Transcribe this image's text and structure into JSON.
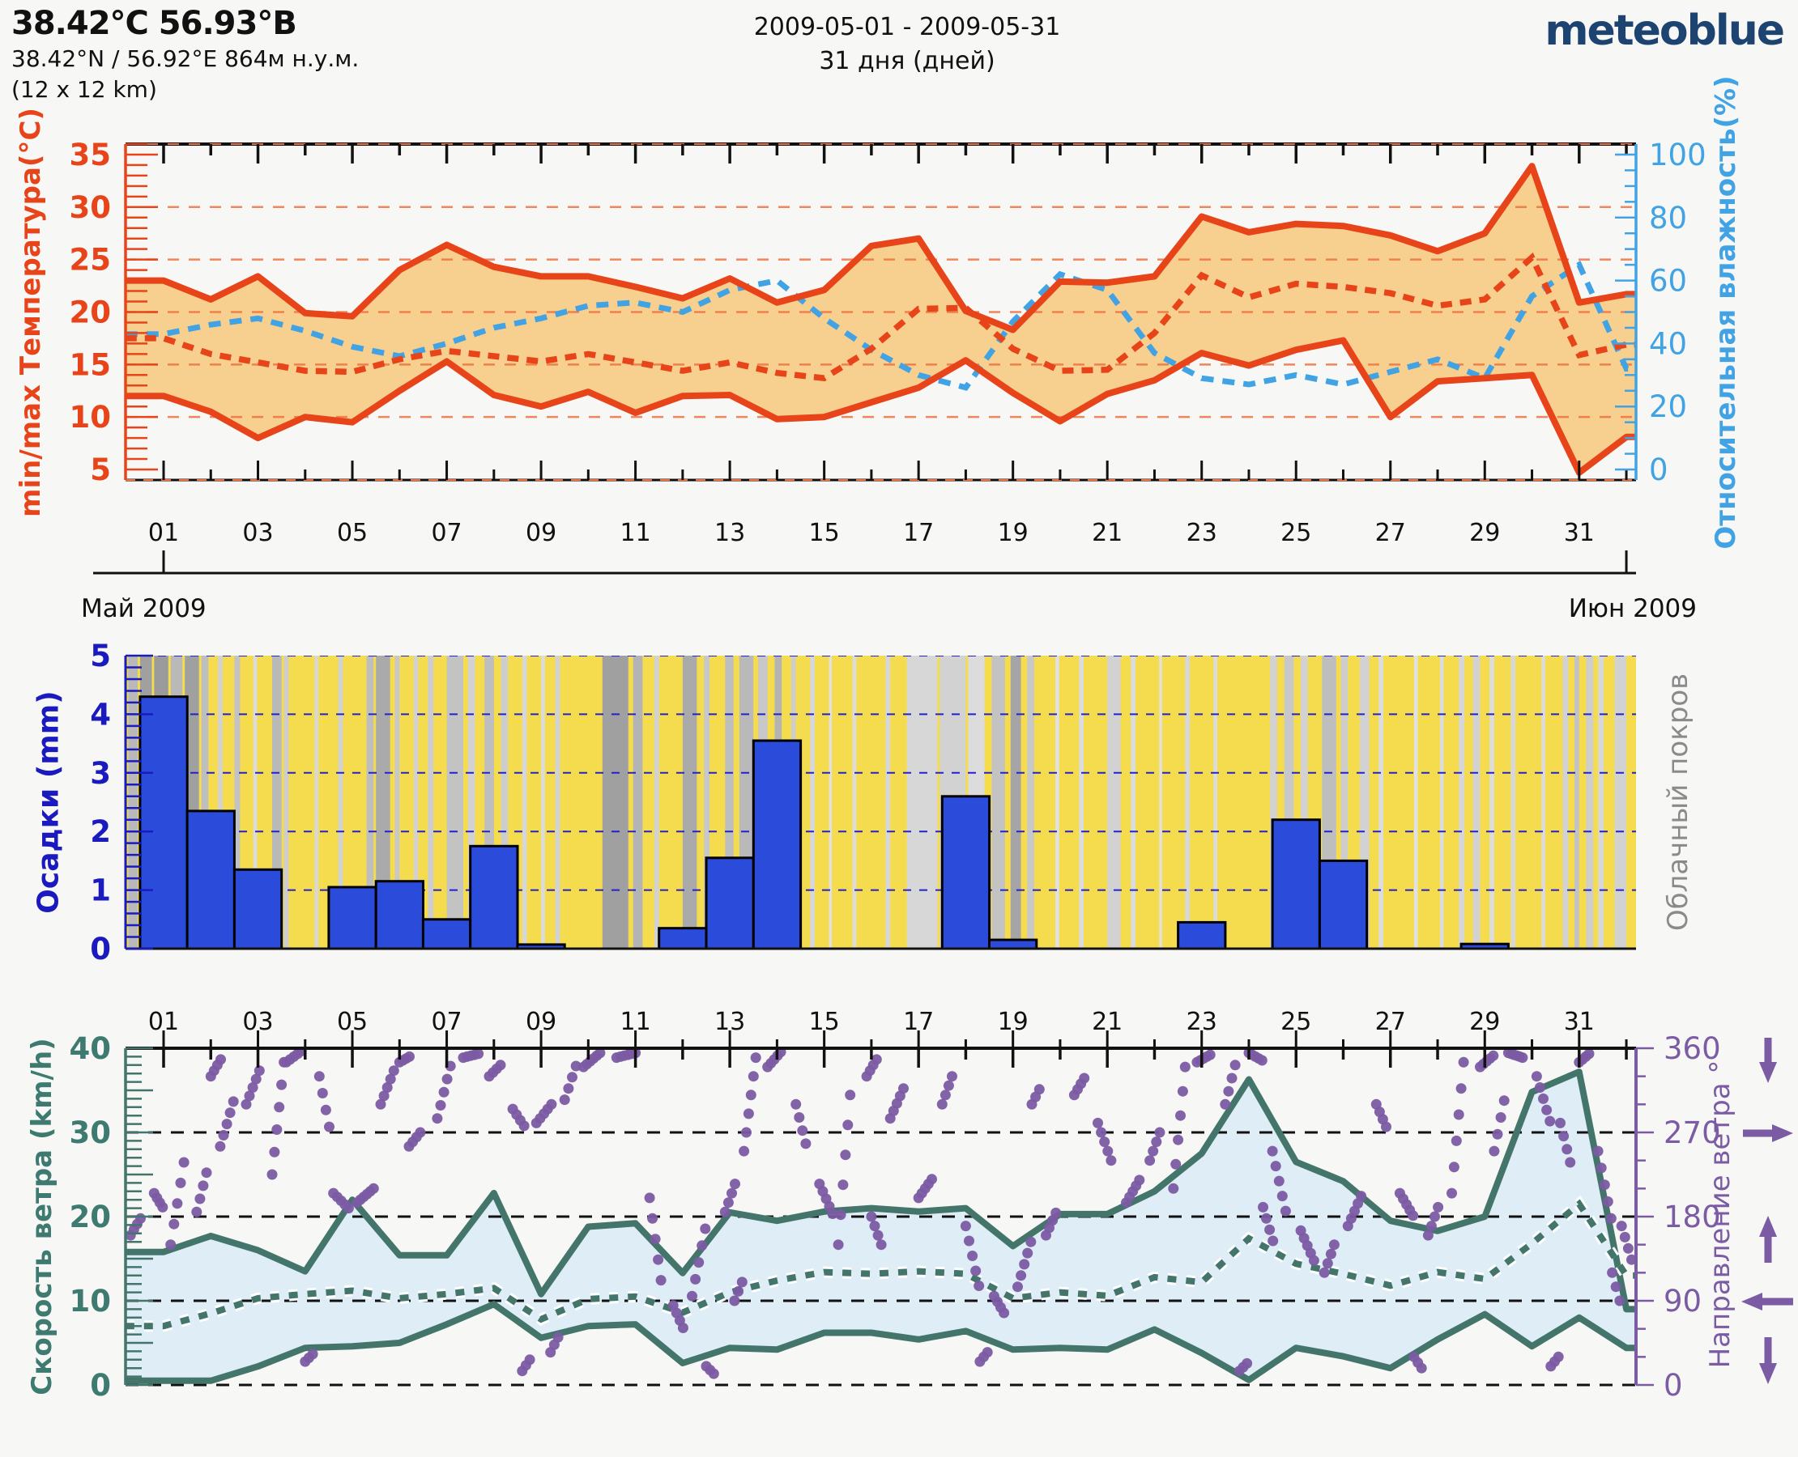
{
  "header": {
    "title": "38.42°C 56.93°B",
    "coords": "38.42°N / 56.92°E   864м н.у.м.",
    "resolution": "(12 x 12 km)",
    "date_range": "2009-05-01 - 2009-05-31",
    "duration": "31 дня (дней)",
    "logo_text": "meteoblue"
  },
  "colors": {
    "page_bg": "#f7f7f6",
    "temp_line": "#e8441a",
    "temp_band": "#f7cf8e",
    "temp_grid": "#ef7340",
    "humidity_line": "#41a3e3",
    "precip_bar": "#2b4bdb",
    "precip_axis": "#1a1abe",
    "cloud_bg": "#f5dc4e",
    "cloud_label": "#8a8a8a",
    "wind_line": "#44756b",
    "wind_band": "#deedf6",
    "wind_dir_dot": "#7b5ba3",
    "frame_black": "#111111",
    "logo_color": "#1d4370"
  },
  "chart_data": [
    {
      "id": "temperature-humidity",
      "type": "area",
      "ylabel_left": "min/max Температура(°C)",
      "ylabel_right": "Относительная влажность(%)",
      "ylim_left": [
        5,
        35
      ],
      "ylim_right": [
        0,
        100
      ],
      "yticks_left": [
        5,
        10,
        15,
        20,
        25,
        30,
        35
      ],
      "yticks_right": [
        0,
        20,
        40,
        60,
        80,
        100
      ],
      "gridlines_left": [
        10,
        15,
        20,
        25,
        30
      ],
      "x_tick_labels": [
        "01",
        "03",
        "05",
        "07",
        "09",
        "11",
        "13",
        "15",
        "17",
        "19",
        "21",
        "23",
        "25",
        "27",
        "29",
        "31"
      ],
      "month_left": "Май 2009",
      "month_right": "Июн 2009",
      "series": [
        {
          "name": "max_temp_c",
          "style": "solid",
          "values": [
            23,
            21.2,
            23.4,
            19.9,
            19.6,
            24,
            26.4,
            24.3,
            23.4,
            23.4,
            22.4,
            21.3,
            23.2,
            20.9,
            22.1,
            26.3,
            27,
            20.1,
            18.3,
            22.9,
            22.8,
            23.4,
            29.1,
            27.6,
            28.4,
            28.2,
            27.3,
            25.8,
            27.5,
            33.9,
            20.9,
            21.7
          ]
        },
        {
          "name": "min_temp_c",
          "style": "solid",
          "values": [
            12,
            10.5,
            8,
            10,
            9.5,
            12.5,
            15.3,
            12.1,
            11,
            12.4,
            10.4,
            12,
            12.1,
            9.8,
            10,
            11.4,
            12.8,
            15.4,
            12.3,
            9.6,
            12.2,
            13.5,
            16.1,
            14.9,
            16.4,
            17.3,
            10,
            13.4,
            13.7,
            14,
            4.7,
            8.1
          ]
        },
        {
          "name": "mean_temp_c",
          "style": "dashed",
          "values": [
            17.5,
            16,
            15.2,
            14.4,
            14.3,
            15.5,
            16.3,
            15.8,
            15.3,
            16,
            15.2,
            14.4,
            15.2,
            14.2,
            13.7,
            16.5,
            20.3,
            20.4,
            16.5,
            14.4,
            14.5,
            18,
            23.5,
            21.4,
            22.7,
            22.4,
            21.8,
            20.6,
            21.2,
            25.2,
            15.9,
            16.9
          ]
        },
        {
          "name": "rel_humidity_pct",
          "style": "dashed",
          "axis": "right",
          "values": [
            43,
            46,
            48,
            44,
            39,
            36,
            40,
            45,
            48,
            52,
            53,
            50,
            57,
            60,
            48,
            38,
            30,
            26,
            47,
            62,
            57,
            37,
            29,
            27,
            30,
            27,
            31,
            35,
            29,
            55,
            65,
            32
          ]
        }
      ]
    },
    {
      "id": "precipitation-cloudcover",
      "type": "bar",
      "ylabel_left": "Осадки (mm)",
      "ylabel_right": "Облачный покров",
      "ylim": [
        0,
        5
      ],
      "yticks": [
        0,
        1,
        2,
        3,
        4,
        5
      ],
      "values_mm": [
        4.3,
        2.35,
        1.35,
        0,
        1.05,
        1.15,
        0.5,
        1.75,
        0.07,
        0,
        0,
        0.35,
        1.55,
        3.55,
        0,
        0,
        0,
        2.6,
        0.15,
        0,
        0,
        0,
        0.45,
        0,
        2.2,
        1.5,
        0,
        0,
        0.08,
        0,
        0
      ],
      "cloud_stripes": [
        [
          0.25,
          0.2,
          0.55
        ],
        [
          0.5,
          0.25,
          0.8
        ],
        [
          0.8,
          0.3,
          0.85
        ],
        [
          1.15,
          0.25,
          0.55
        ],
        [
          1.45,
          0.3,
          0.8
        ],
        [
          1.8,
          0.15,
          0.5
        ],
        [
          2.15,
          0.1,
          0.3
        ],
        [
          2.5,
          0.12,
          0.45
        ],
        [
          2.9,
          0.08,
          0.2
        ],
        [
          3.3,
          0.2,
          0.55
        ],
        [
          3.55,
          0.1,
          0.35
        ],
        [
          4.2,
          0.08,
          0.25
        ],
        [
          4.7,
          0.1,
          0.3
        ],
        [
          5.3,
          0.15,
          0.5
        ],
        [
          5.5,
          0.3,
          0.7
        ],
        [
          5.9,
          0.1,
          0.4
        ],
        [
          6.3,
          0.1,
          0.3
        ],
        [
          6.6,
          0.12,
          0.35
        ],
        [
          7.0,
          0.35,
          0.45
        ],
        [
          7.45,
          0.15,
          0.3
        ],
        [
          7.8,
          0.2,
          0.5
        ],
        [
          8.15,
          0.15,
          0.35
        ],
        [
          8.6,
          0.1,
          0.25
        ],
        [
          9.0,
          0.08,
          0.2
        ],
        [
          9.3,
          0.1,
          0.3
        ],
        [
          10.3,
          0.55,
          0.8
        ],
        [
          10.95,
          0.2,
          0.6
        ],
        [
          11.4,
          0.1,
          0.3
        ],
        [
          12.0,
          0.3,
          0.7
        ],
        [
          12.45,
          0.12,
          0.4
        ],
        [
          12.9,
          0.18,
          0.5
        ],
        [
          13.2,
          0.3,
          0.55
        ],
        [
          13.6,
          0.2,
          0.4
        ],
        [
          13.95,
          0.15,
          0.6
        ],
        [
          14.3,
          0.1,
          0.35
        ],
        [
          14.7,
          0.1,
          0.25
        ],
        [
          15.1,
          0.06,
          0.15
        ],
        [
          15.6,
          0.08,
          0.2
        ],
        [
          16.3,
          0.1,
          0.25
        ],
        [
          16.75,
          0.65,
          0.25
        ],
        [
          17.45,
          0.55,
          0.3
        ],
        [
          18.05,
          0.35,
          0.2
        ],
        [
          18.55,
          0.28,
          0.45
        ],
        [
          18.95,
          0.22,
          0.75
        ],
        [
          19.3,
          0.15,
          0.4
        ],
        [
          19.9,
          0.08,
          0.15
        ],
        [
          20.4,
          0.1,
          0.2
        ],
        [
          21.0,
          0.28,
          0.3
        ],
        [
          21.5,
          0.1,
          0.2
        ],
        [
          22.1,
          0.06,
          0.15
        ],
        [
          22.65,
          0.1,
          0.25
        ],
        [
          23.25,
          0.08,
          0.2
        ],
        [
          24.45,
          0.15,
          0.3
        ],
        [
          24.75,
          0.2,
          0.4
        ],
        [
          25.1,
          0.15,
          0.3
        ],
        [
          25.55,
          0.3,
          0.5
        ],
        [
          25.95,
          0.15,
          0.35
        ],
        [
          26.35,
          0.2,
          0.3
        ],
        [
          26.75,
          0.1,
          0.2
        ],
        [
          27.5,
          0.08,
          0.15
        ],
        [
          28.05,
          0.08,
          0.2
        ],
        [
          28.45,
          0.12,
          0.25
        ],
        [
          28.75,
          0.15,
          0.3
        ],
        [
          29.1,
          0.1,
          0.2
        ],
        [
          29.55,
          0.1,
          0.25
        ],
        [
          30.2,
          0.08,
          0.2
        ],
        [
          30.65,
          0.12,
          0.3
        ],
        [
          30.9,
          0.1,
          0.45
        ],
        [
          31.15,
          0.15,
          0.35
        ],
        [
          31.4,
          0.12,
          0.25
        ],
        [
          31.75,
          0.25,
          0.3
        ]
      ]
    },
    {
      "id": "wind",
      "type": "line+scatter",
      "ylabel_left": "Скорость ветра (km/h)",
      "ylabel_right": "Направление ветра °",
      "ylim_left": [
        0,
        40
      ],
      "ylim_right": [
        0,
        360
      ],
      "yticks_left": [
        0,
        10,
        20,
        30,
        40
      ],
      "yticks_right": [
        0,
        90,
        180,
        270,
        360
      ],
      "x_tick_labels": [
        "01",
        "03",
        "05",
        "07",
        "09",
        "11",
        "13",
        "15",
        "17",
        "19",
        "21",
        "23",
        "25",
        "27",
        "29",
        "31"
      ],
      "series": [
        {
          "name": "max_wind_kmh",
          "style": "solid",
          "values": [
            15.8,
            17.7,
            16,
            13.5,
            22,
            15.4,
            15.4,
            22.8,
            10.8,
            18.8,
            19.2,
            13.3,
            20.5,
            19.5,
            20.6,
            21,
            20.6,
            21,
            16.5,
            20.3,
            20.3,
            23,
            27.5,
            36.3,
            26.5,
            24.2,
            19.5,
            18.3,
            20,
            34.8,
            37.2,
            9
          ]
        },
        {
          "name": "mean_wind_kmh",
          "style": "dotted",
          "values": [
            7,
            8.5,
            10.3,
            10.8,
            11.2,
            10.3,
            10.8,
            11.5,
            7.8,
            10.2,
            10.5,
            8.6,
            11,
            12.4,
            13.4,
            13.2,
            13.5,
            13.2,
            10.3,
            11,
            10.6,
            12.8,
            12.2,
            17.4,
            14.4,
            13.2,
            11.8,
            13.4,
            12.6,
            16.8,
            21.5,
            13
          ]
        },
        {
          "name": "min_wind_kmh",
          "style": "solid",
          "values": [
            0.5,
            0.5,
            2.2,
            4.4,
            4.6,
            5,
            7.2,
            9.6,
            5.6,
            7,
            7.2,
            2.6,
            4.4,
            4.2,
            6.2,
            6.2,
            5.4,
            6.4,
            4.2,
            4.4,
            4.2,
            6.6,
            3.8,
            0.6,
            4.4,
            3.4,
            2,
            5.4,
            8.4,
            4.6,
            8,
            4.4
          ]
        }
      ],
      "direction_streaks": [
        [
          0.3,
          160,
          4,
          0.07,
          6
        ],
        [
          0.8,
          205,
          4,
          0.06,
          -5
        ],
        [
          1.15,
          150,
          5,
          0.07,
          22
        ],
        [
          1.7,
          185,
          4,
          0.07,
          14
        ],
        [
          2.0,
          330,
          4,
          0.07,
          6
        ],
        [
          2.2,
          255,
          5,
          0.07,
          12
        ],
        [
          2.75,
          300,
          5,
          0.07,
          9
        ],
        [
          3.3,
          225,
          6,
          0.05,
          24
        ],
        [
          3.6,
          345,
          5,
          0.08,
          3
        ],
        [
          4.0,
          25,
          3,
          0.08,
          4
        ],
        [
          4.3,
          330,
          4,
          0.07,
          -18
        ],
        [
          4.6,
          205,
          5,
          0.08,
          -4
        ],
        [
          5.1,
          195,
          6,
          0.07,
          3
        ],
        [
          5.6,
          300,
          5,
          0.07,
          9
        ],
        [
          6.0,
          345,
          4,
          0.07,
          2
        ],
        [
          6.2,
          255,
          4,
          0.08,
          5
        ],
        [
          6.8,
          285,
          5,
          0.07,
          14
        ],
        [
          7.35,
          350,
          5,
          0.08,
          1
        ],
        [
          7.9,
          330,
          4,
          0.08,
          4
        ],
        [
          8.4,
          295,
          4,
          0.08,
          -6
        ],
        [
          8.6,
          15,
          3,
          0.08,
          6
        ],
        [
          8.9,
          280,
          5,
          0.08,
          5
        ],
        [
          9.2,
          35,
          3,
          0.08,
          8
        ],
        [
          9.5,
          305,
          4,
          0.08,
          12
        ],
        [
          9.9,
          340,
          6,
          0.07,
          3
        ],
        [
          10.6,
          350,
          6,
          0.08,
          1
        ],
        [
          11.3,
          200,
          5,
          0.06,
          -22
        ],
        [
          11.8,
          85,
          4,
          0.07,
          -8
        ],
        [
          12.2,
          95,
          5,
          0.07,
          18
        ],
        [
          12.5,
          20,
          3,
          0.08,
          -4
        ],
        [
          12.9,
          185,
          4,
          0.07,
          10
        ],
        [
          13.1,
          90,
          3,
          0.08,
          10
        ],
        [
          13.3,
          250,
          6,
          0.05,
          20
        ],
        [
          13.8,
          340,
          5,
          0.07,
          4
        ],
        [
          14.4,
          300,
          4,
          0.07,
          -14
        ],
        [
          14.9,
          215,
          5,
          0.07,
          -8
        ],
        [
          15.3,
          150,
          6,
          0.05,
          32
        ],
        [
          15.9,
          330,
          4,
          0.07,
          6
        ],
        [
          16.0,
          180,
          4,
          0.07,
          -10
        ],
        [
          16.4,
          285,
          5,
          0.07,
          8
        ],
        [
          17.0,
          200,
          5,
          0.07,
          5
        ],
        [
          17.5,
          300,
          4,
          0.07,
          10
        ],
        [
          18.0,
          170,
          5,
          0.07,
          -16
        ],
        [
          18.3,
          25,
          3,
          0.08,
          5
        ],
        [
          18.6,
          95,
          4,
          0.07,
          -6
        ],
        [
          19.1,
          105,
          5,
          0.07,
          12
        ],
        [
          19.4,
          300,
          3,
          0.08,
          8
        ],
        [
          19.7,
          160,
          4,
          0.07,
          8
        ],
        [
          20.3,
          310,
          4,
          0.07,
          6
        ],
        [
          20.8,
          280,
          5,
          0.07,
          -10
        ],
        [
          21.4,
          195,
          5,
          0.07,
          6
        ],
        [
          21.9,
          240,
          4,
          0.07,
          10
        ],
        [
          22.4,
          210,
          6,
          0.05,
          26
        ],
        [
          22.9,
          345,
          5,
          0.07,
          2
        ],
        [
          23.5,
          300,
          4,
          0.07,
          14
        ],
        [
          23.8,
          15,
          3,
          0.08,
          4
        ],
        [
          24.0,
          355,
          5,
          0.07,
          -2
        ],
        [
          24.3,
          190,
          4,
          0.07,
          -12
        ],
        [
          24.5,
          250,
          5,
          0.07,
          -16
        ],
        [
          25.1,
          165,
          5,
          0.07,
          -8
        ],
        [
          25.6,
          120,
          4,
          0.07,
          10
        ],
        [
          26.1,
          170,
          5,
          0.07,
          8
        ],
        [
          26.7,
          300,
          4,
          0.07,
          -8
        ],
        [
          27.2,
          205,
          5,
          0.07,
          -6
        ],
        [
          27.5,
          30,
          3,
          0.08,
          -6
        ],
        [
          27.8,
          160,
          4,
          0.07,
          10
        ],
        [
          28.3,
          205,
          6,
          0.05,
          28
        ],
        [
          28.9,
          340,
          5,
          0.07,
          3
        ],
        [
          29.2,
          250,
          4,
          0.07,
          18
        ],
        [
          29.5,
          355,
          6,
          0.06,
          -1
        ],
        [
          30.1,
          330,
          5,
          0.07,
          -12
        ],
        [
          30.4,
          20,
          3,
          0.08,
          5
        ],
        [
          30.6,
          280,
          4,
          0.07,
          -14
        ],
        [
          31.0,
          345,
          4,
          0.07,
          3
        ],
        [
          31.4,
          250,
          5,
          0.07,
          -18
        ],
        [
          31.7,
          120,
          3,
          0.08,
          -15
        ],
        [
          31.9,
          170,
          4,
          0.07,
          -12
        ]
      ]
    }
  ]
}
